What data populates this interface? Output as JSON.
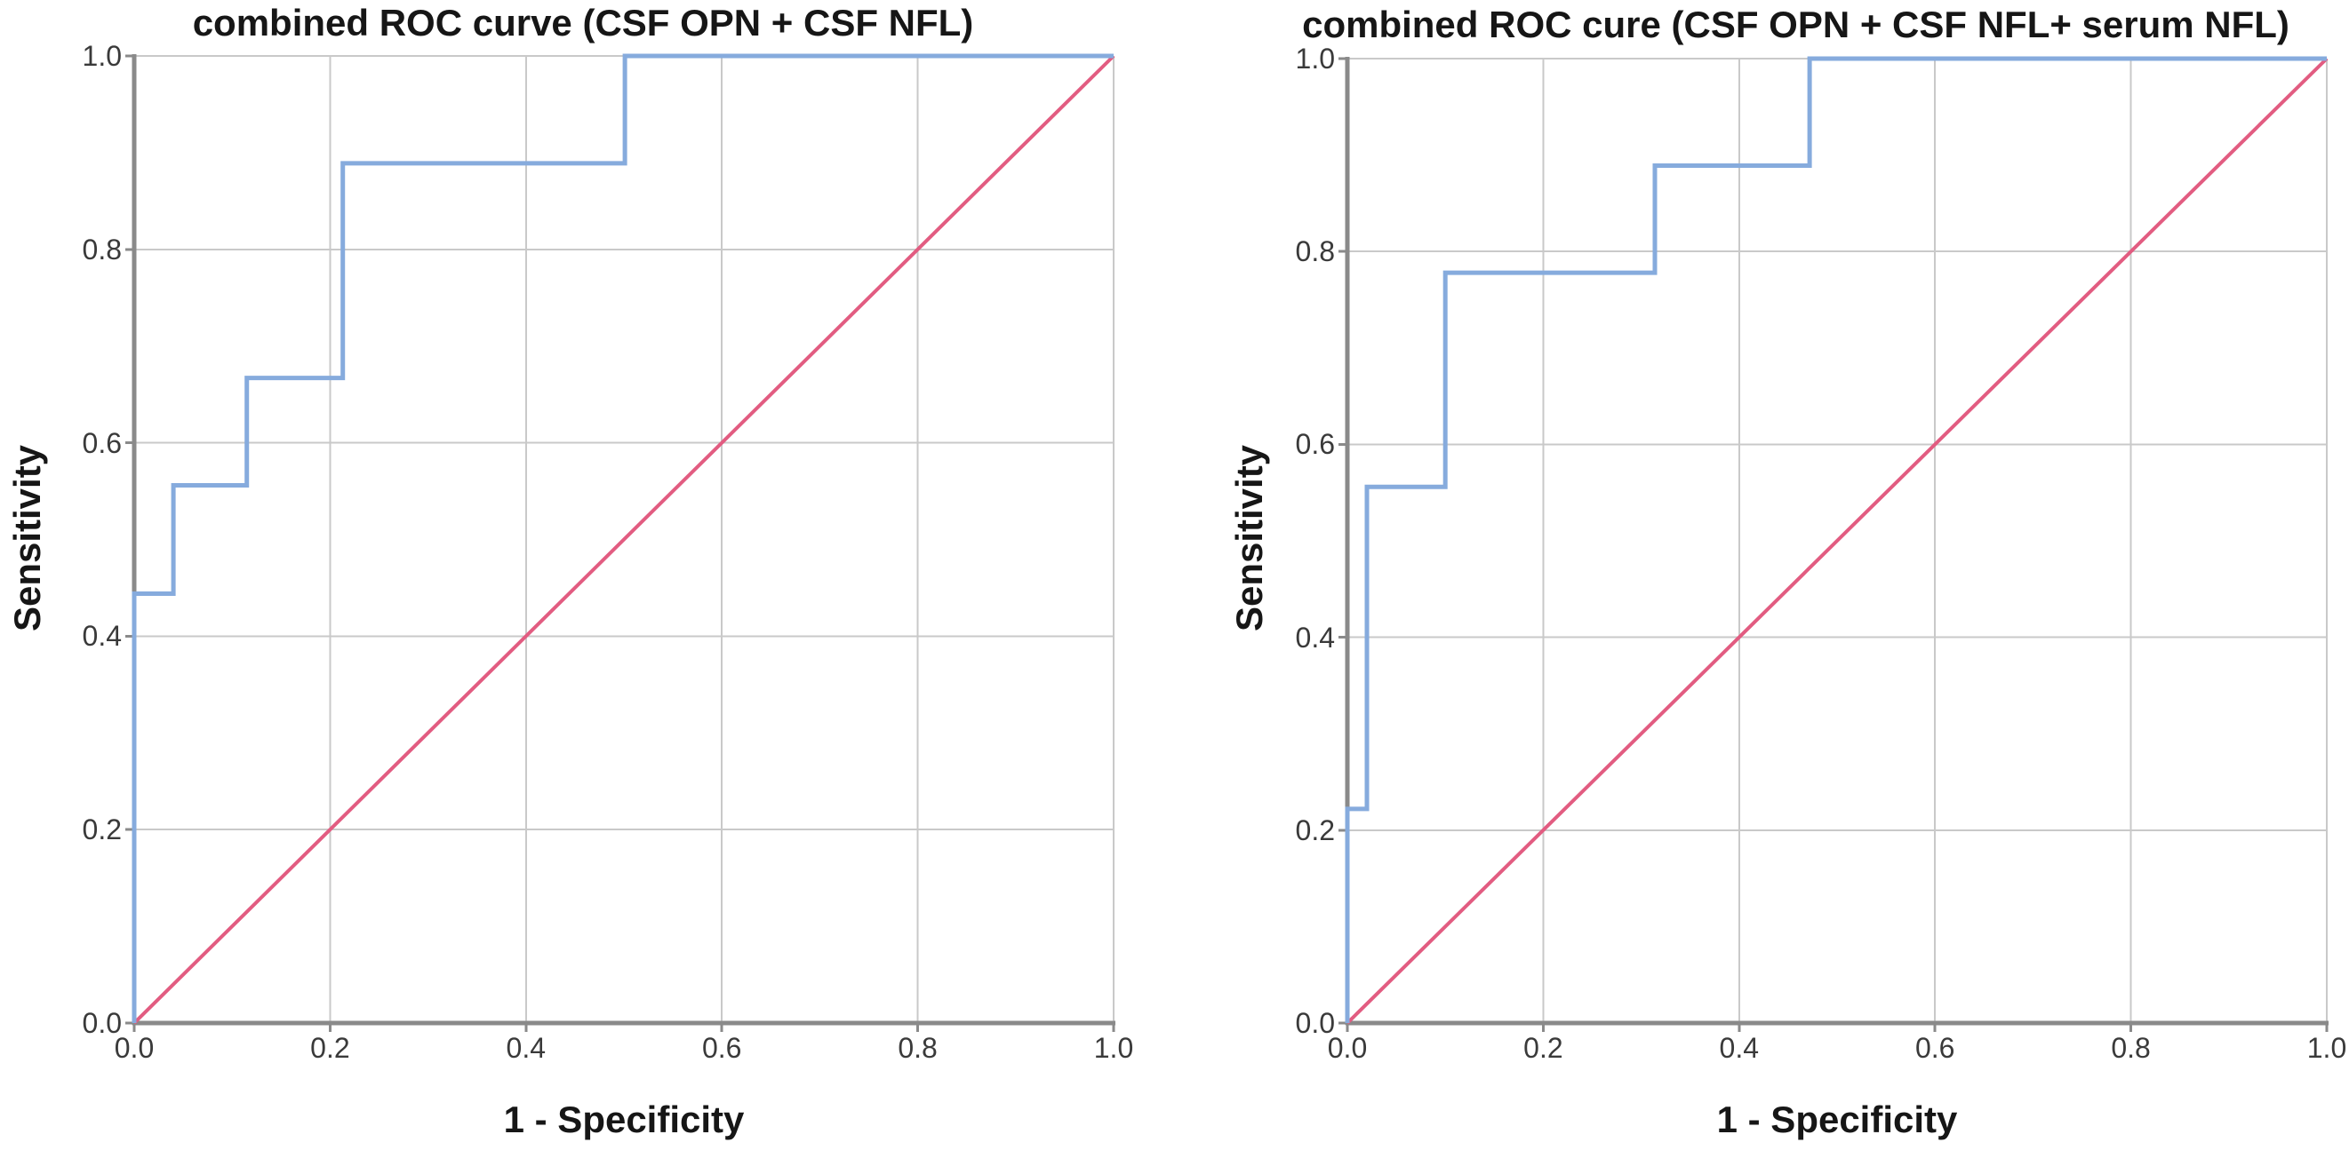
{
  "figure": {
    "background": "#ffffff",
    "description": "Two combined ROC curve plots side by side"
  },
  "colors": {
    "curve": "#86ABDD",
    "reference": "#E25C81",
    "grid": "#C9C9C9",
    "axis": "#8A8A8A",
    "tick_text": "#3A3A3A",
    "label_text": "#161616"
  },
  "chart_data": [
    {
      "type": "line",
      "title": "combined ROC curve (CSF OPN + CSF NFL)",
      "xlabel": "1 - Specificity",
      "ylabel": "Sensitivity",
      "xlim": [
        0,
        1
      ],
      "ylim": [
        0,
        1
      ],
      "grid": true,
      "legend": "none",
      "x_ticks": [
        "0.0",
        "0.2",
        "0.4",
        "0.6",
        "0.8",
        "1.0"
      ],
      "y_ticks": [
        "0.0",
        "0.2",
        "0.4",
        "0.6",
        "0.8",
        "1.0"
      ],
      "series": [
        {
          "name": "combined ROC curve",
          "color_key": "curve",
          "points": [
            [
              0,
              0
            ],
            [
              0,
              0.444
            ],
            [
              0.04,
              0.444
            ],
            [
              0.04,
              0.556
            ],
            [
              0.115,
              0.556
            ],
            [
              0.115,
              0.667
            ],
            [
              0.213,
              0.667
            ],
            [
              0.213,
              0.889
            ],
            [
              0.501,
              0.889
            ],
            [
              0.501,
              1.0
            ],
            [
              1.0,
              1.0
            ]
          ]
        },
        {
          "name": "diagonal reference line",
          "color_key": "reference",
          "points": [
            [
              0,
              0
            ],
            [
              1,
              1
            ]
          ]
        }
      ]
    },
    {
      "type": "line",
      "title": "combined ROC cure (CSF OPN + CSF NFL+ serum NFL)",
      "xlabel": "1 - Specificity",
      "ylabel": "Sensitivity",
      "xlim": [
        0,
        1
      ],
      "ylim": [
        0,
        1
      ],
      "grid": true,
      "legend": "none",
      "x_ticks": [
        "0.0",
        "0.2",
        "0.4",
        "0.6",
        "0.8",
        "1.0"
      ],
      "y_ticks": [
        "0.0",
        "0.2",
        "0.4",
        "0.6",
        "0.8",
        "1.0"
      ],
      "series": [
        {
          "name": "combined ROC curve",
          "color_key": "curve",
          "points": [
            [
              0,
              0
            ],
            [
              0,
              0.222
            ],
            [
              0.02,
              0.222
            ],
            [
              0.02,
              0.556
            ],
            [
              0.1,
              0.556
            ],
            [
              0.1,
              0.778
            ],
            [
              0.314,
              0.778
            ],
            [
              0.314,
              0.889
            ],
            [
              0.472,
              0.889
            ],
            [
              0.472,
              1.0
            ],
            [
              1.0,
              1.0
            ]
          ]
        },
        {
          "name": "diagonal reference line",
          "color_key": "reference",
          "points": [
            [
              0,
              0
            ],
            [
              1,
              1
            ]
          ]
        }
      ]
    }
  ]
}
